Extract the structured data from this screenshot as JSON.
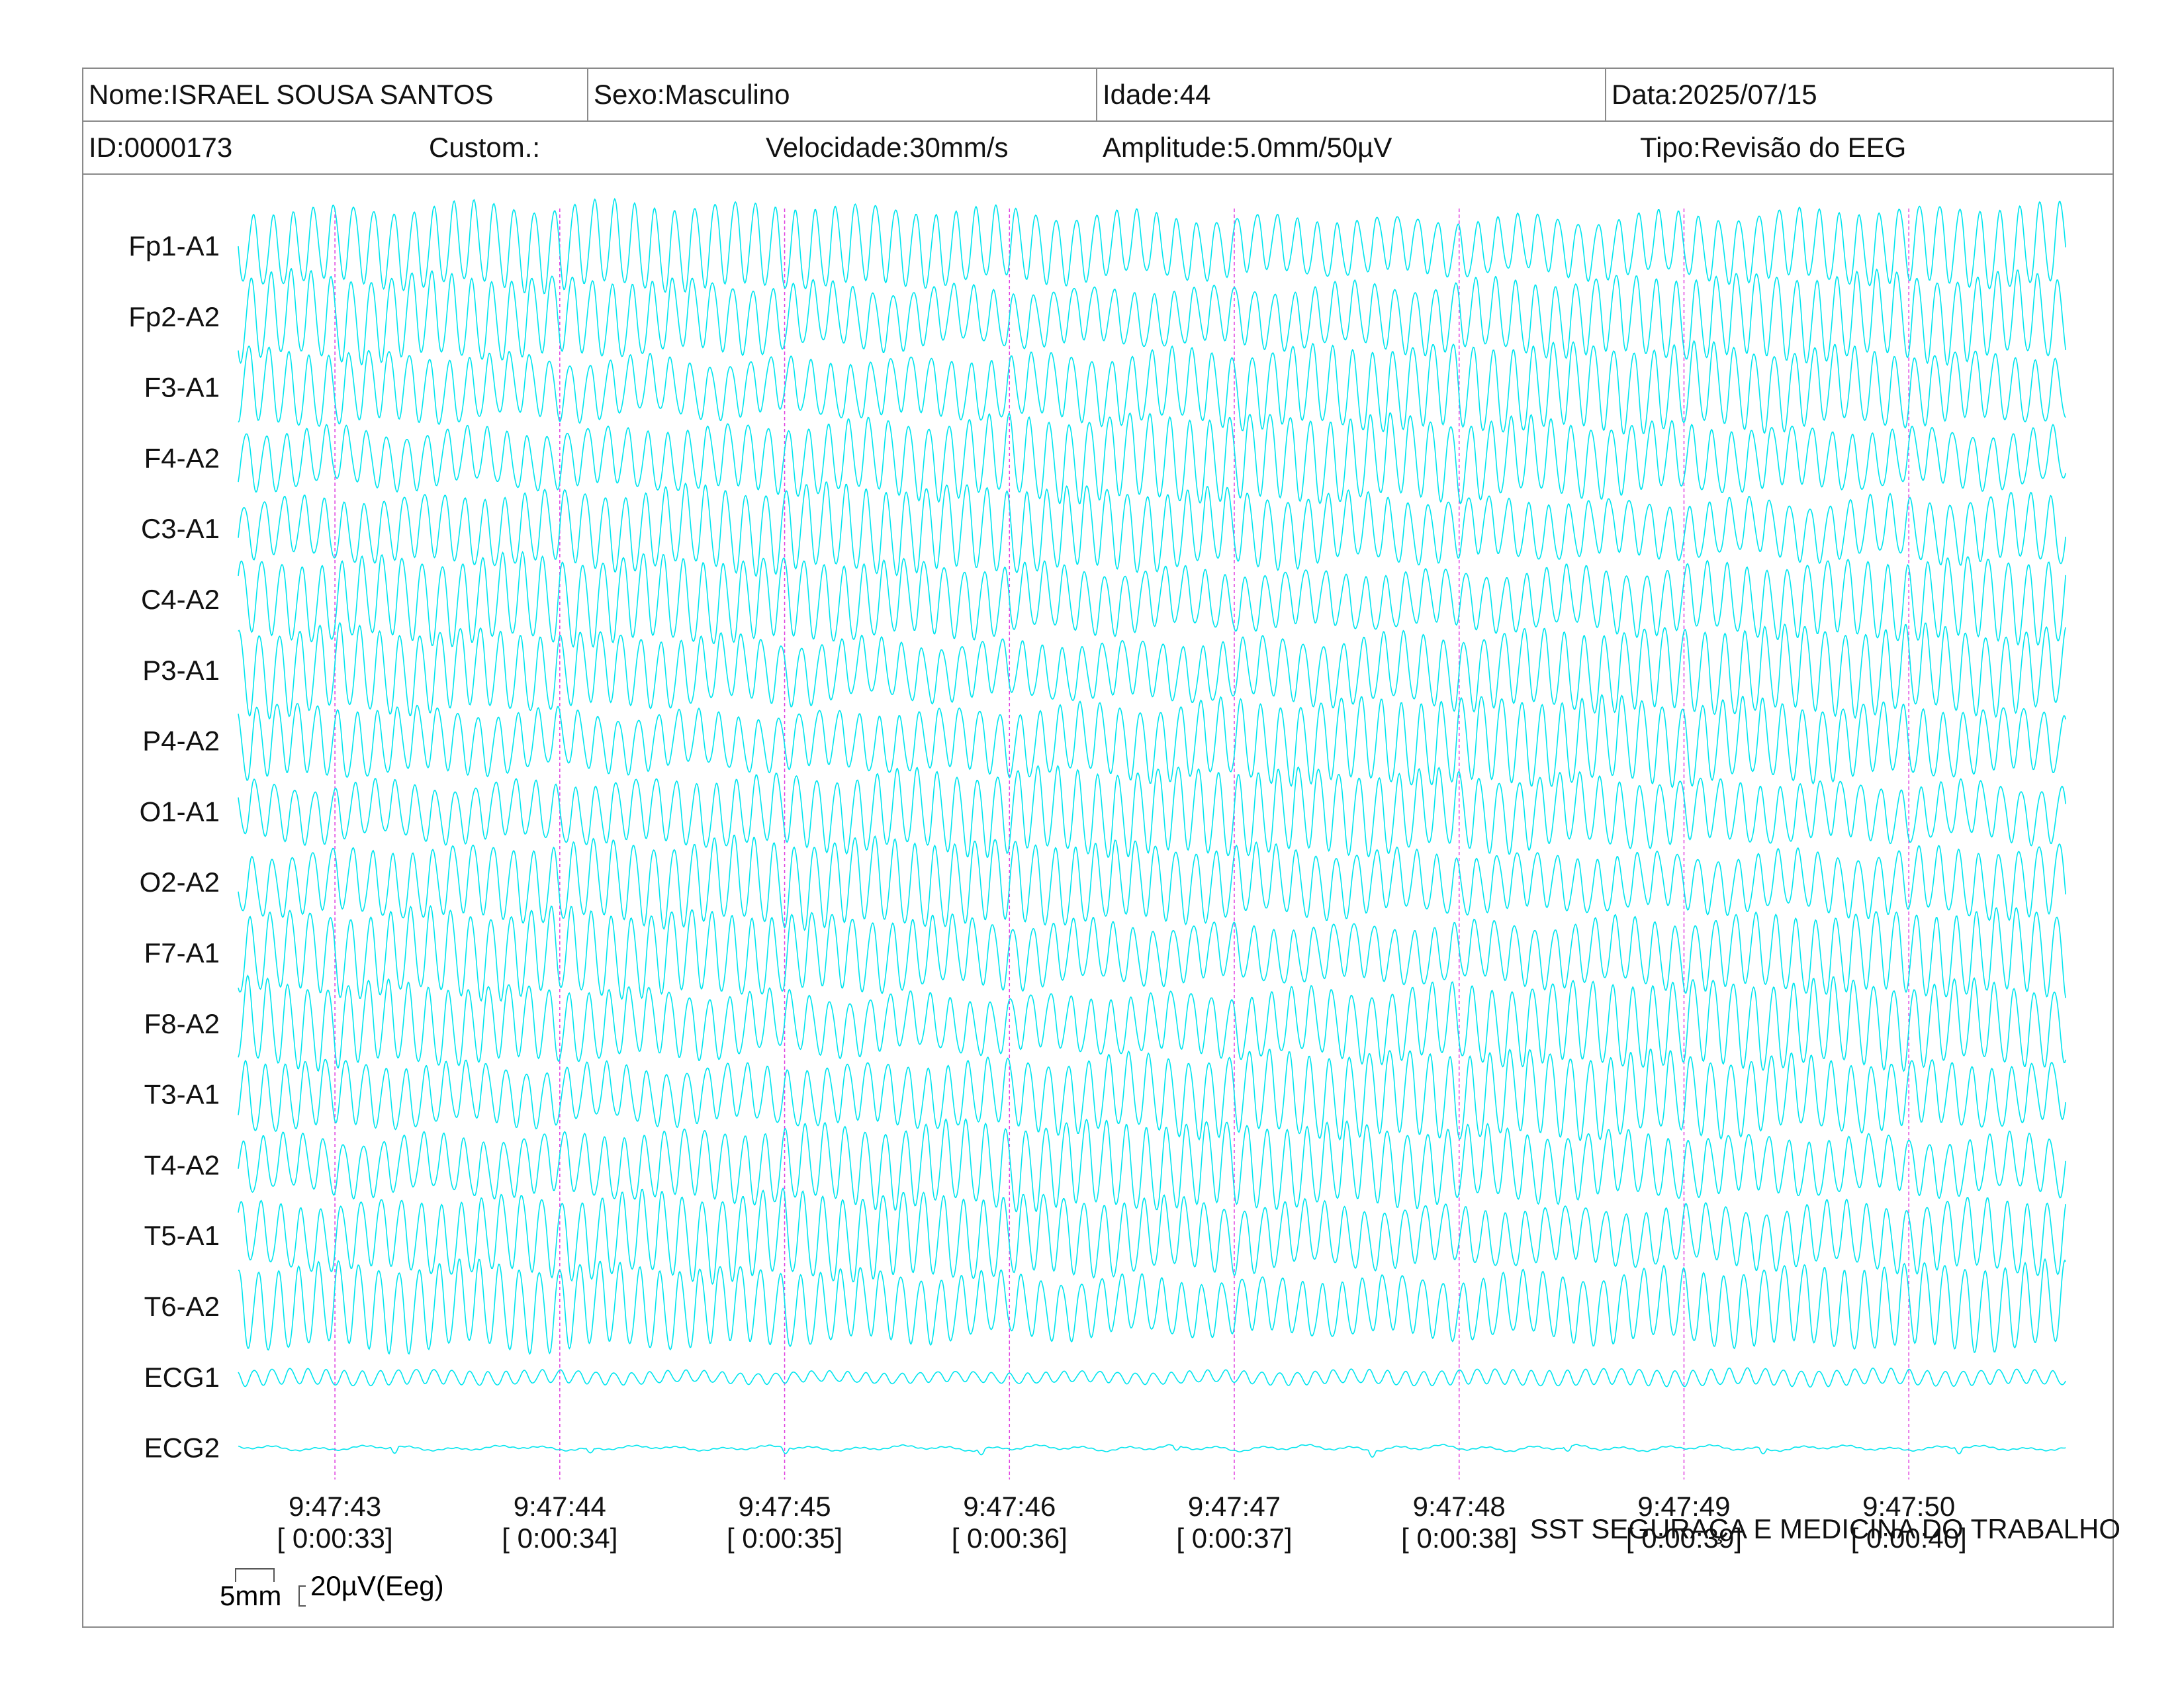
{
  "header": {
    "nome": "Nome:ISRAEL SOUSA SANTOS",
    "sexo": "Sexo:Masculino",
    "idade": "Idade:44",
    "data": "Data:2025/07/15",
    "id": "ID:0000173",
    "custom": "Custom.:",
    "velocidade": "Velocidade:30mm/s",
    "amplitude": "Amplitude:5.0mm/50µV",
    "tipo": "Tipo:Revisão do EEG"
  },
  "footer": {
    "title": "SST SEGURAÇA E MEDICINA DO TRABALHO",
    "scale_mm": "5mm",
    "scale_uv": "20µV(Eeg)"
  },
  "colors": {
    "trace": "#00e5ee",
    "marker": "#e040e0",
    "border": "#8a8a8a"
  },
  "chart_data": {
    "type": "line",
    "series": [
      {
        "name": "Fp1-A1",
        "kind": "eeg"
      },
      {
        "name": "Fp2-A2",
        "kind": "eeg"
      },
      {
        "name": "F3-A1",
        "kind": "eeg"
      },
      {
        "name": "F4-A2",
        "kind": "eeg"
      },
      {
        "name": "C3-A1",
        "kind": "eeg"
      },
      {
        "name": "C4-A2",
        "kind": "eeg"
      },
      {
        "name": "P3-A1",
        "kind": "eeg"
      },
      {
        "name": "P4-A2",
        "kind": "eeg"
      },
      {
        "name": "O1-A1",
        "kind": "eeg"
      },
      {
        "name": "O2-A2",
        "kind": "eeg"
      },
      {
        "name": "F7-A1",
        "kind": "eeg"
      },
      {
        "name": "F8-A2",
        "kind": "eeg"
      },
      {
        "name": "T3-A1",
        "kind": "eeg"
      },
      {
        "name": "T4-A2",
        "kind": "eeg"
      },
      {
        "name": "T5-A1",
        "kind": "eeg"
      },
      {
        "name": "T6-A2",
        "kind": "eeg"
      },
      {
        "name": "ECG1",
        "kind": "ecg"
      },
      {
        "name": "ECG2",
        "kind": "ecg-flat"
      }
    ],
    "time_markers": [
      {
        "clock": "9:47:43",
        "elapsed": "[ 0:00:33]"
      },
      {
        "clock": "9:47:44",
        "elapsed": "[ 0:00:34]"
      },
      {
        "clock": "9:47:45",
        "elapsed": "[ 0:00:35]"
      },
      {
        "clock": "9:47:46",
        "elapsed": "[ 0:00:36]"
      },
      {
        "clock": "9:47:47",
        "elapsed": "[ 0:00:37]"
      },
      {
        "clock": "9:47:48",
        "elapsed": "[ 0:00:38]"
      },
      {
        "clock": "9:47:49",
        "elapsed": "[ 0:00:39]"
      },
      {
        "clock": "9:47:50",
        "elapsed": "[ 0:00:40]"
      }
    ],
    "x_range_seconds": [
      32.57,
      40.7
    ],
    "legend": "none",
    "grid": false
  }
}
